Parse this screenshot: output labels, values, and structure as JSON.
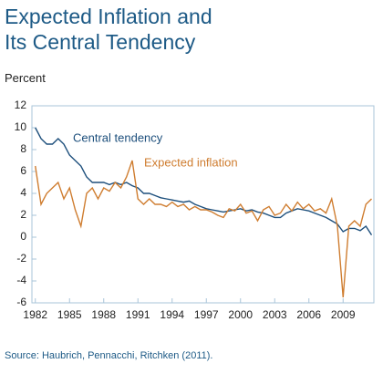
{
  "chart_data": {
    "type": "line",
    "title": "Expected Inflation and Its Central Tendency",
    "y_label": "Percent",
    "source": "Source: Haubrich, Pennacchi, Ritchken (2011).",
    "x": [
      1982,
      1982.5,
      1983,
      1983.5,
      1984,
      1984.5,
      1985,
      1985.5,
      1986,
      1986.5,
      1987,
      1987.5,
      1988,
      1988.5,
      1989,
      1989.5,
      1990,
      1990.5,
      1991,
      1991.5,
      1992,
      1992.5,
      1993,
      1993.5,
      1994,
      1994.5,
      1995,
      1995.5,
      1996,
      1996.5,
      1997,
      1997.5,
      1998,
      1998.5,
      1999,
      1999.5,
      2000,
      2000.5,
      2001,
      2001.5,
      2002,
      2002.5,
      2003,
      2003.5,
      2004,
      2004.5,
      2005,
      2005.5,
      2006,
      2006.5,
      2007,
      2007.5,
      2008,
      2008.5,
      2009,
      2009.5,
      2010,
      2010.5,
      2011,
      2011.5
    ],
    "series": [
      {
        "name": "Central tendency",
        "color": "#1d4f7c",
        "values": [
          10,
          9,
          8.5,
          8.5,
          9,
          8.5,
          7.5,
          7,
          6.5,
          5.5,
          5,
          5,
          5,
          4.8,
          5,
          4.8,
          5,
          4.7,
          4.5,
          4,
          4,
          3.8,
          3.6,
          3.5,
          3.4,
          3.3,
          3.2,
          3.3,
          3,
          2.8,
          2.6,
          2.5,
          2.4,
          2.3,
          2.4,
          2.5,
          2.6,
          2.4,
          2.5,
          2.3,
          2.2,
          2,
          1.8,
          1.8,
          2.2,
          2.4,
          2.6,
          2.5,
          2.4,
          2.2,
          2,
          1.8,
          1.5,
          1.2,
          0.5,
          0.8,
          0.8,
          0.6,
          1,
          0.2
        ]
      },
      {
        "name": "Expected inflation",
        "color": "#cf7d30",
        "values": [
          6.5,
          3,
          4,
          4.5,
          5,
          3.5,
          4.5,
          2.5,
          1,
          4,
          4.5,
          3.5,
          4.5,
          4.2,
          5,
          4.5,
          5.5,
          7,
          3.5,
          3,
          3.5,
          3,
          3,
          2.8,
          3.2,
          2.8,
          3,
          2.5,
          2.8,
          2.5,
          2.5,
          2.3,
          2,
          1.8,
          2.6,
          2.4,
          3,
          2.2,
          2.4,
          1.5,
          2.5,
          2.8,
          2,
          2.2,
          3,
          2.4,
          3.2,
          2.6,
          3,
          2.4,
          2.6,
          2.2,
          3.5,
          1,
          -5.5,
          1,
          1.5,
          1,
          3,
          3.5
        ]
      }
    ],
    "xlim": [
      1981.7,
      2011.7
    ],
    "xticks": [
      1982,
      1985,
      1988,
      1991,
      1994,
      1997,
      2000,
      2003,
      2006,
      2009
    ],
    "ylim": [
      -6,
      12
    ],
    "yticks": [
      12,
      10,
      8,
      6,
      4,
      2,
      0,
      -2,
      -4,
      -6
    ]
  }
}
